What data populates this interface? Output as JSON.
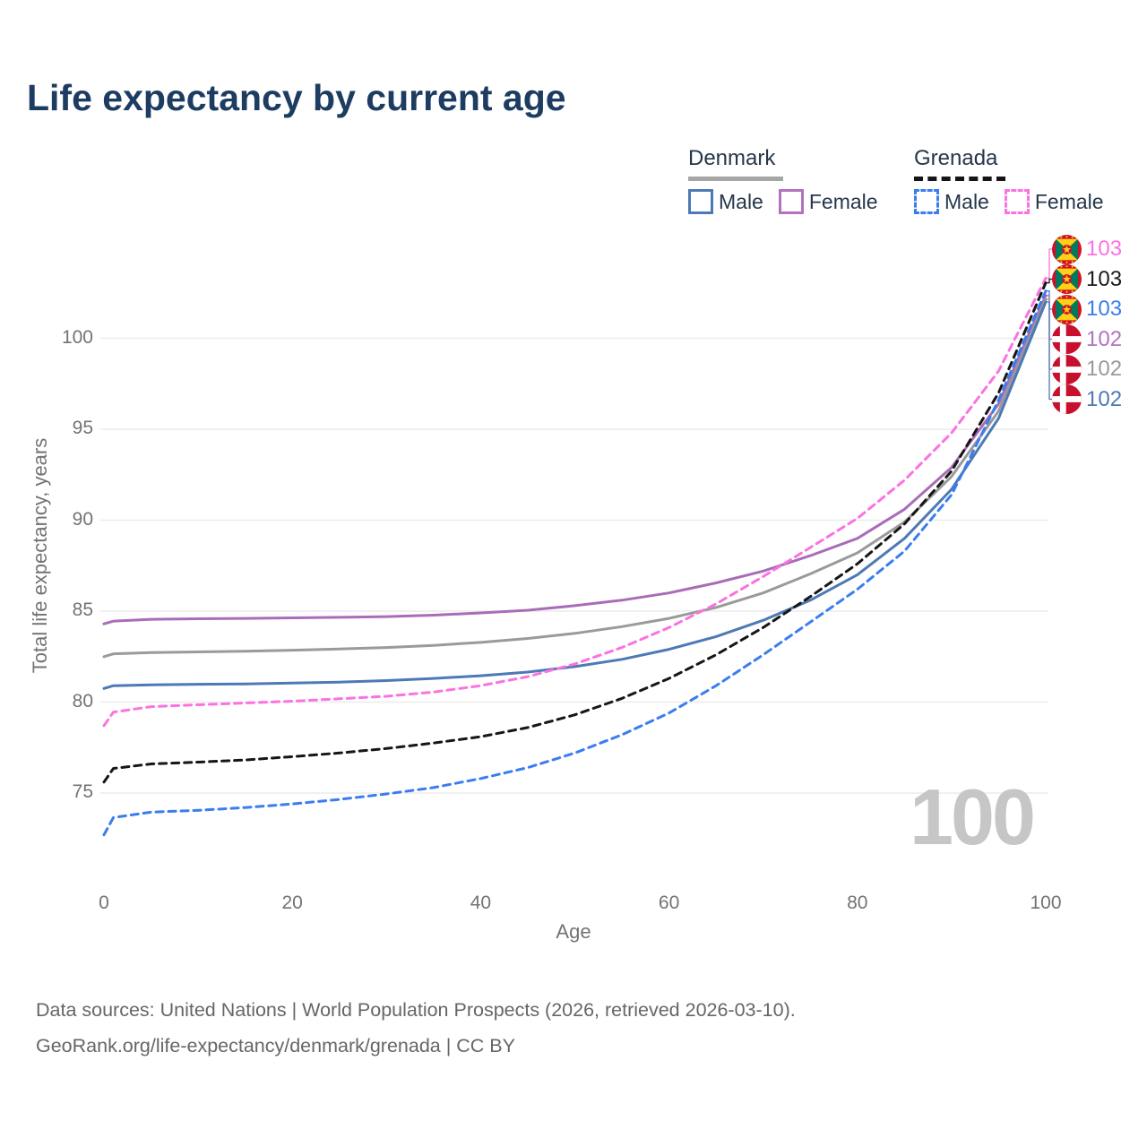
{
  "title": "Life expectancy by current age",
  "legend": {
    "groups": [
      {
        "country": "Denmark",
        "line_style": "solid",
        "items": [
          {
            "label": "Male",
            "color": "#4d79b5"
          },
          {
            "label": "Female",
            "color": "#b173c0"
          }
        ]
      },
      {
        "country": "Grenada",
        "line_style": "dashed",
        "items": [
          {
            "label": "Male",
            "color": "#3a7df0"
          },
          {
            "label": "Female",
            "color": "#fb72e1"
          }
        ]
      }
    ]
  },
  "chart_data": {
    "type": "line",
    "title": "Life expectancy by current age",
    "xlabel": "Age",
    "ylabel": "Total life expectancy, years",
    "x_ticks": [
      0,
      20,
      40,
      60,
      80,
      100
    ],
    "y_ticks": [
      75,
      80,
      85,
      90,
      95,
      100
    ],
    "xlim": [
      0,
      100
    ],
    "ylim": [
      72,
      104.5
    ],
    "grid": "horizontal",
    "legend_position": "top-right",
    "age_indicator": "100",
    "x": [
      0,
      1,
      5,
      10,
      15,
      20,
      25,
      30,
      35,
      40,
      45,
      50,
      55,
      60,
      65,
      70,
      75,
      80,
      85,
      90,
      95,
      100
    ],
    "series": [
      {
        "name": "Denmark Female",
        "country": "Denmark",
        "sex": "Female",
        "color": "#a96db8",
        "line_style": "solid",
        "values": [
          84.3,
          84.45,
          84.55,
          84.58,
          84.6,
          84.63,
          84.66,
          84.7,
          84.78,
          84.9,
          85.05,
          85.3,
          85.6,
          86.0,
          86.55,
          87.2,
          88.05,
          89.0,
          90.6,
          92.9,
          96.4,
          102.35
        ]
      },
      {
        "name": "Denmark Both sexes",
        "country": "Denmark",
        "sex": "Both",
        "color": "#9a9a9a",
        "line_style": "solid",
        "values": [
          82.5,
          82.65,
          82.72,
          82.76,
          82.8,
          82.85,
          82.92,
          83.0,
          83.12,
          83.28,
          83.5,
          83.78,
          84.15,
          84.6,
          85.2,
          86.0,
          87.05,
          88.2,
          89.9,
          92.4,
          96.0,
          102.15
        ]
      },
      {
        "name": "Denmark Male",
        "country": "Denmark",
        "sex": "Male",
        "color": "#4d79b5",
        "line_style": "solid",
        "values": [
          80.75,
          80.9,
          80.95,
          80.98,
          81.0,
          81.05,
          81.1,
          81.18,
          81.3,
          81.45,
          81.65,
          81.95,
          82.35,
          82.9,
          83.6,
          84.5,
          85.6,
          87.0,
          89.0,
          91.7,
          95.6,
          102.0
        ]
      },
      {
        "name": "Grenada Female",
        "country": "Grenada",
        "sex": "Female",
        "color": "#fb72e1",
        "line_style": "dashed",
        "values": [
          78.7,
          79.45,
          79.75,
          79.85,
          79.95,
          80.05,
          80.18,
          80.32,
          80.55,
          80.9,
          81.4,
          82.1,
          83.0,
          84.1,
          85.4,
          86.9,
          88.5,
          90.1,
          92.2,
          94.8,
          98.2,
          103.3
        ]
      },
      {
        "name": "Grenada Both sexes",
        "country": "Grenada",
        "sex": "Both",
        "color": "#161616",
        "line_style": "dashed",
        "values": [
          75.6,
          76.35,
          76.6,
          76.7,
          76.82,
          77.0,
          77.2,
          77.45,
          77.75,
          78.1,
          78.6,
          79.3,
          80.2,
          81.3,
          82.6,
          84.1,
          85.8,
          87.6,
          89.8,
          92.7,
          97.0,
          103.05
        ]
      },
      {
        "name": "Grenada Male",
        "country": "Grenada",
        "sex": "Male",
        "color": "#3a7df0",
        "line_style": "dashed",
        "values": [
          72.7,
          73.65,
          73.95,
          74.05,
          74.2,
          74.4,
          74.65,
          74.95,
          75.3,
          75.8,
          76.4,
          77.2,
          78.2,
          79.4,
          80.9,
          82.6,
          84.4,
          86.2,
          88.3,
          91.4,
          96.6,
          102.6
        ]
      }
    ]
  },
  "end_labels": [
    {
      "value": "103",
      "flag": "grenada",
      "color": "#fb72e1"
    },
    {
      "value": "103",
      "flag": "grenada",
      "color": "#1a1a1a"
    },
    {
      "value": "103",
      "flag": "grenada",
      "color": "#3a7df0"
    },
    {
      "value": "102",
      "flag": "denmark",
      "color": "#b173c0"
    },
    {
      "value": "102",
      "flag": "denmark",
      "color": "#9a9a9a"
    },
    {
      "value": "102",
      "flag": "denmark",
      "color": "#4d79b5"
    }
  ],
  "footer": {
    "line1": "Data sources: United Nations | World Population Prospects (2026, retrieved 2026-03-10).",
    "line2": "GeoRank.org/life-expectancy/denmark/grenada | CC BY"
  }
}
